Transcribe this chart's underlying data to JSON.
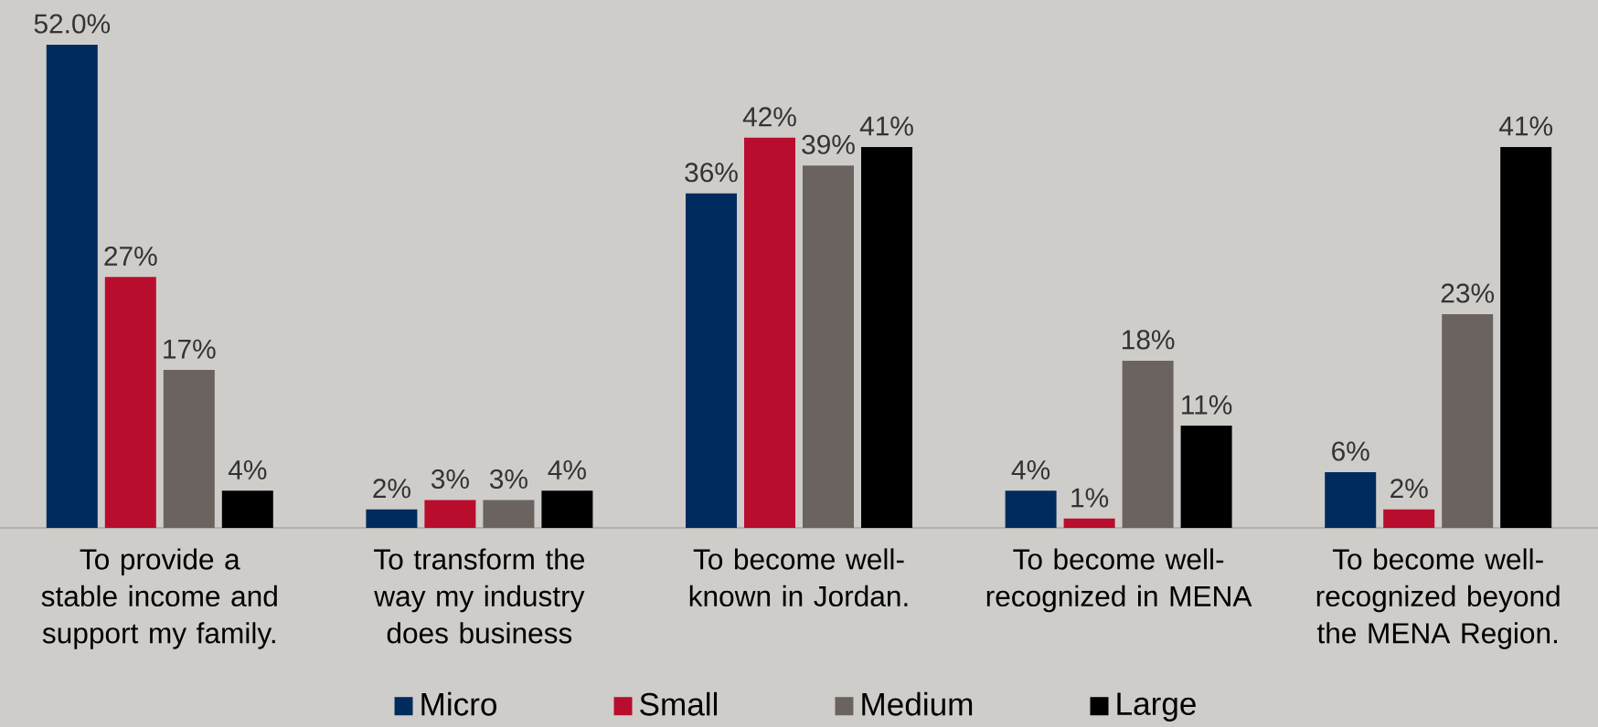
{
  "chart_data": {
    "type": "bar",
    "categories": [
      "To provide a stable income and support my family.",
      "To transform the way my industry does business",
      "To become well-known in Jordan.",
      "To become well-recognized in MENA",
      "To become well-recognized beyond the MENA Region."
    ],
    "series": [
      {
        "name": "Micro",
        "color": "#002b5f",
        "values": [
          52,
          2,
          36,
          4,
          6
        ],
        "value_labels": [
          "52.0%",
          "2%",
          "36%",
          "4%",
          "6%"
        ]
      },
      {
        "name": "Small",
        "color": "#b90d2e",
        "values": [
          27,
          3,
          42,
          1,
          2
        ],
        "value_labels": [
          "27%",
          "3%",
          "42%",
          "1%",
          "2%"
        ]
      },
      {
        "name": "Medium",
        "color": "#6b6360",
        "values": [
          17,
          3,
          39,
          18,
          23
        ],
        "value_labels": [
          "17%",
          "3%",
          "39%",
          "18%",
          "23%"
        ]
      },
      {
        "name": "Large",
        "color": "#000000",
        "values": [
          4,
          4,
          41,
          11,
          41
        ],
        "value_labels": [
          "4%",
          "4%",
          "41%",
          "11%",
          "41%"
        ]
      }
    ],
    "legend": "bottom"
  }
}
